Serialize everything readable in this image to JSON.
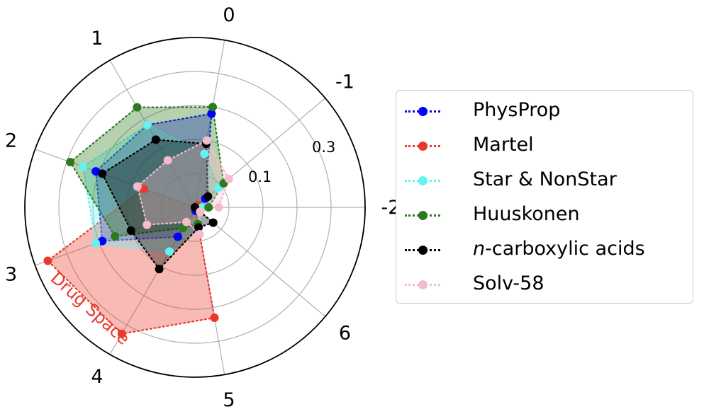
{
  "chart_data": {
    "type": "radar",
    "axes": [
      "0",
      "-1",
      "-2",
      "6",
      "5",
      "4",
      "3",
      "2",
      "1"
    ],
    "radial_ticks": [
      "0.1",
      "0.3"
    ],
    "rlim": [
      0,
      0.5
    ],
    "grid": true,
    "legend_placement": "right",
    "annotation": "Drug Space",
    "series": [
      {
        "name": "PhysProp",
        "color": "#0000ff",
        "values": [
          0.28,
          0.04,
          0.02,
          0.0,
          0.01,
          0.1,
          0.29,
          0.31,
          0.28
        ]
      },
      {
        "name": "Martel",
        "color": "#e8392b",
        "values": [
          0.0,
          0.01,
          0.0,
          0.0,
          0.33,
          0.43,
          0.46,
          0.16,
          0.0
        ]
      },
      {
        "name": "Star & NonStar",
        "color": "#66f2f2",
        "values": [
          0.16,
          0.09,
          0.02,
          0.0,
          0.06,
          0.15,
          0.31,
          0.35,
          0.28
        ]
      },
      {
        "name": "Huuskonen",
        "color": "#2a7a1e",
        "values": [
          0.3,
          0.11,
          0.04,
          0.0,
          0.05,
          0.07,
          0.25,
          0.39,
          0.34
        ]
      },
      {
        "name": "n-carboxylic acids",
        "color": "#000000",
        "values": [
          0.19,
          0.05,
          0.0,
          0.07,
          0.06,
          0.21,
          0.2,
          0.29,
          0.23
        ]
      },
      {
        "name": "Solv-58",
        "color": "#f4bccb",
        "values": [
          0.2,
          0.13,
          0.07,
          0.02,
          0.08,
          0.05,
          0.15,
          0.18,
          0.16
        ]
      }
    ]
  },
  "legend": {
    "items": [
      {
        "label": "PhysProp",
        "color": "#0000ff"
      },
      {
        "label": "Martel",
        "color": "#e8392b"
      },
      {
        "label": "Star & NonStar",
        "color": "#66f2f2"
      },
      {
        "label": "Huuskonen",
        "color": "#2a7a1e"
      },
      {
        "label": "n-carboxylic acids",
        "italic_part": "n",
        "rest": "-carboxylic acids",
        "color": "#000000"
      },
      {
        "label": "Solv-58",
        "color": "#f4bccb"
      }
    ]
  }
}
